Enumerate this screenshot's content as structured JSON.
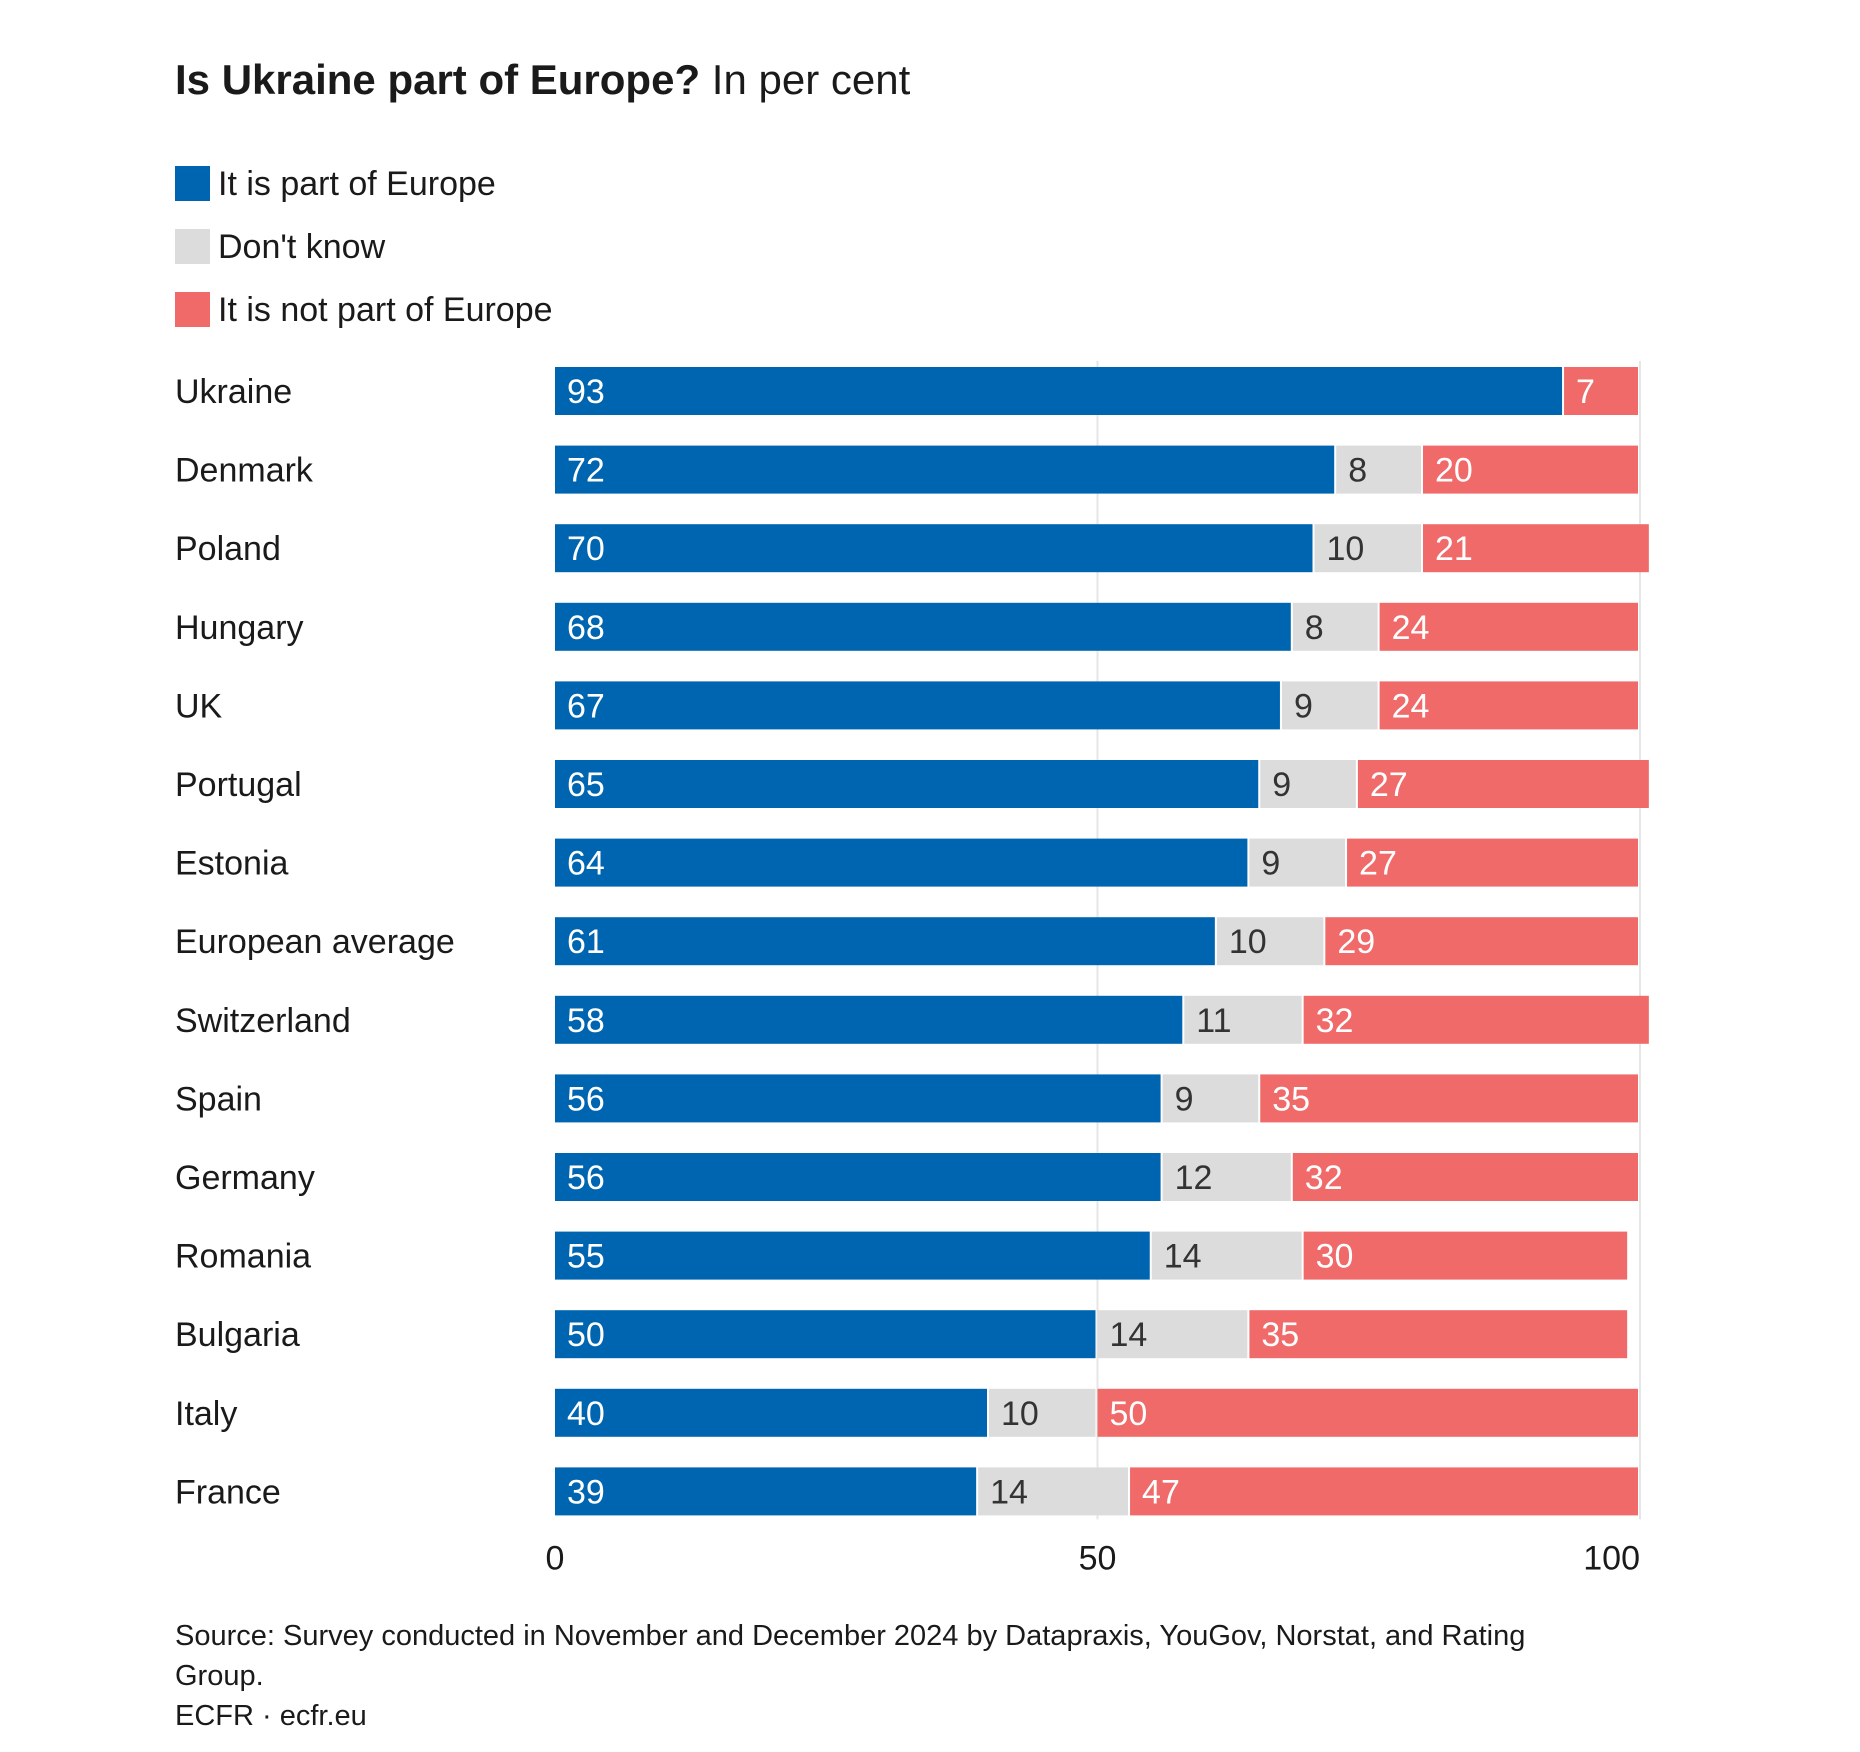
{
  "title": {
    "bold": "Is Ukraine part of Europe?",
    "light": "In per cent"
  },
  "legend": [
    {
      "label": "It is part of Europe",
      "color": "#0065b1"
    },
    {
      "label": "Don't know",
      "color": "#dcdcdc"
    },
    {
      "label": "It is not part of Europe",
      "color": "#f06a6a"
    }
  ],
  "chart_data": {
    "type": "bar",
    "orientation": "horizontal",
    "stacked": true,
    "categories": [
      "Ukraine",
      "Denmark",
      "Poland",
      "Hungary",
      "UK",
      "Portugal",
      "Estonia",
      "European average",
      "Switzerland",
      "Spain",
      "Germany",
      "Romania",
      "Bulgaria",
      "Italy",
      "France"
    ],
    "series": [
      {
        "name": "It is part of Europe",
        "color": "#0065b1",
        "label_color": "#ffffff",
        "values": [
          93,
          72,
          70,
          68,
          67,
          65,
          64,
          61,
          58,
          56,
          56,
          55,
          50,
          40,
          39
        ]
      },
      {
        "name": "Don't know",
        "color": "#dcdcdc",
        "label_color": "#333333",
        "values": [
          0,
          8,
          10,
          8,
          9,
          9,
          9,
          10,
          11,
          9,
          12,
          14,
          14,
          10,
          14
        ],
        "labels": [
          "",
          "8",
          "10",
          "8",
          "9",
          "9",
          "9",
          "10",
          "11",
          "9",
          "12",
          "14",
          "14",
          "10",
          "14"
        ]
      },
      {
        "name": "It is not part of Europe",
        "color": "#f06a6a",
        "label_color": "#ffffff",
        "values": [
          7,
          20,
          21,
          24,
          24,
          27,
          27,
          29,
          32,
          35,
          32,
          30,
          35,
          50,
          47
        ]
      }
    ],
    "xlim": [
      0,
      100
    ],
    "xticks": [
      0,
      50,
      100
    ],
    "gridlines": [
      50,
      100
    ],
    "grid_color": "#e6e6e6"
  },
  "footer": {
    "source": "Source: Survey conducted in November and December 2024 by Datapraxis, YouGov, Norstat, and Rating Group.",
    "credit": "ECFR · ecfr.eu"
  }
}
